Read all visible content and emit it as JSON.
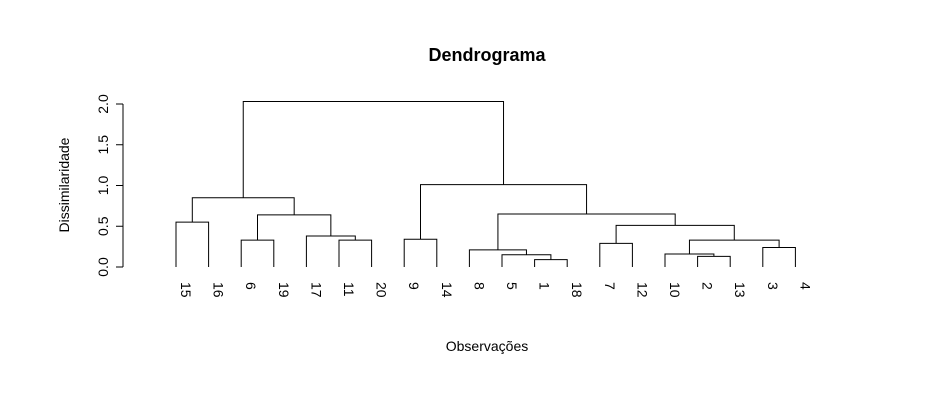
{
  "chart_data": {
    "type": "dendrogram",
    "title": "Dendrograma",
    "xlabel": "Observações",
    "ylabel": "Dissimilaridade",
    "ylim": [
      0,
      2.0
    ],
    "yticks": [
      "0.0",
      "0.5",
      "1.0",
      "1.5",
      "2.0"
    ],
    "leaves": [
      "15",
      "16",
      "6",
      "19",
      "17",
      "11",
      "20",
      "9",
      "14",
      "8",
      "5",
      "1",
      "18",
      "7",
      "12",
      "10",
      "2",
      "13",
      "3",
      "4"
    ],
    "merges": [
      {
        "id": "m1",
        "left": "1",
        "right": "18",
        "height": 0.09
      },
      {
        "id": "m2",
        "left": "2",
        "right": "13",
        "height": 0.13
      },
      {
        "id": "m3",
        "left": "5",
        "right": "m1",
        "height": 0.15
      },
      {
        "id": "m4",
        "left": "10",
        "right": "m2",
        "height": 0.16
      },
      {
        "id": "m5",
        "left": "8",
        "right": "m3",
        "height": 0.21
      },
      {
        "id": "m6",
        "left": "3",
        "right": "4",
        "height": 0.24
      },
      {
        "id": "m7",
        "left": "7",
        "right": "12",
        "height": 0.29
      },
      {
        "id": "m8",
        "left": "m4",
        "right": "m6",
        "height": 0.33
      },
      {
        "id": "m9",
        "left": "11",
        "right": "20",
        "height": 0.33
      },
      {
        "id": "m10",
        "left": "6",
        "right": "19",
        "height": 0.33
      },
      {
        "id": "m11",
        "left": "9",
        "right": "14",
        "height": 0.34
      },
      {
        "id": "m12",
        "left": "17",
        "right": "m9",
        "height": 0.38
      },
      {
        "id": "m13",
        "left": "m7",
        "right": "m8",
        "height": 0.51
      },
      {
        "id": "m14",
        "left": "15",
        "right": "16",
        "height": 0.55
      },
      {
        "id": "m15",
        "left": "m10",
        "right": "m12",
        "height": 0.64
      },
      {
        "id": "m16",
        "left": "m5",
        "right": "m13",
        "height": 0.65
      },
      {
        "id": "m17",
        "left": "m14",
        "right": "m15",
        "height": 0.85
      },
      {
        "id": "m18",
        "left": "m11",
        "right": "m16",
        "height": 1.01
      },
      {
        "id": "m19",
        "left": "m17",
        "right": "m18",
        "height": 2.03
      }
    ]
  }
}
